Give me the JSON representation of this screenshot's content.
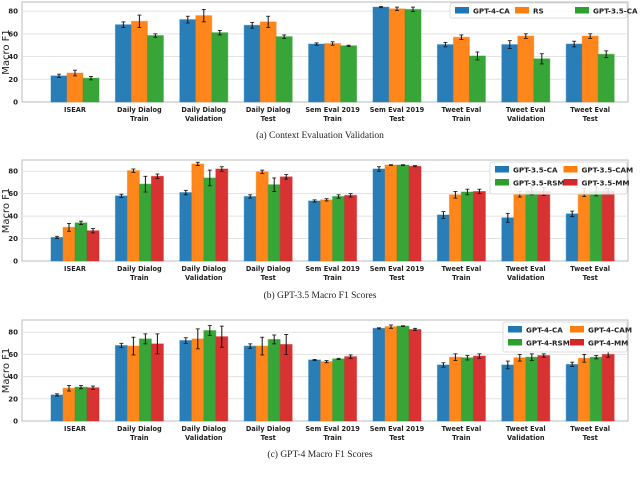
{
  "chart_data": [
    {
      "type": "bar",
      "title": "(a) Context Evaluation Validation",
      "ylabel": "Macro F1",
      "ylim": [
        0,
        88
      ],
      "yticks": [
        0,
        20,
        40,
        60,
        80
      ],
      "grid": true,
      "legend_placement": "top-right",
      "legend_columns": 3,
      "categories": [
        "ISEAR",
        "Daily Dialog\nTrain",
        "Daily Dialog\nValidation",
        "Daily Dialog\nTest",
        "Sem Eval 2019\nTrain",
        "Sem Eval 2019\nTest",
        "Tweet Eval\nTrain",
        "Tweet Eval\nValidation",
        "Tweet Eval\nTest"
      ],
      "series": [
        {
          "name": "GPT-4-CA",
          "color": "#1f77b4",
          "values": [
            23,
            68,
            72.5,
            67.5,
            51,
            83.5,
            50.5,
            50.5,
            51
          ],
          "std": [
            1.5,
            2.5,
            3,
            2.5,
            1,
            0.5,
            2,
            3.5,
            2.5
          ]
        },
        {
          "name": "RS",
          "color": "#ff7f0e",
          "values": [
            25.5,
            71,
            76,
            70.5,
            51.5,
            82,
            57,
            58,
            58
          ],
          "std": [
            2.5,
            5.5,
            5.5,
            5,
            1.5,
            1.5,
            2,
            2,
            2
          ]
        },
        {
          "name": "GPT-3.5-CA",
          "color": "#2ca02c",
          "values": [
            21,
            58.5,
            61,
            57.5,
            49.5,
            81.5,
            40.5,
            38,
            42
          ],
          "std": [
            1.5,
            1.5,
            2,
            1.5,
            0.5,
            2,
            3.5,
            4.5,
            3
          ]
        }
      ]
    },
    {
      "type": "bar",
      "title": "(b) GPT-3.5 Macro F1 Scores",
      "ylabel": "Macro F1",
      "ylim": [
        0,
        90
      ],
      "yticks": [
        0,
        20,
        40,
        60,
        80
      ],
      "grid": true,
      "legend_placement": "top-right",
      "legend_columns": 2,
      "categories": [
        "ISEAR",
        "Daily Dialog\nTrain",
        "Daily Dialog\nValidation",
        "Daily Dialog\nTest",
        "Sem Eval 2019\nTrain",
        "Sem Eval 2019\nTest",
        "Tweet Eval\nTrain",
        "Tweet Eval\nValidation",
        "Tweet Eval\nTest"
      ],
      "series": [
        {
          "name": "GPT-3.5-CA",
          "color": "#1f77b4",
          "values": [
            21,
            58,
            61,
            57.5,
            53.5,
            82,
            41,
            38.5,
            42
          ],
          "std": [
            1,
            1.5,
            2,
            1.5,
            1,
            2,
            3,
            4,
            2.5
          ]
        },
        {
          "name": "GPT-3.5-CAM",
          "color": "#ff7f0e",
          "values": [
            30,
            80.5,
            86.5,
            79.5,
            54.5,
            85.5,
            59,
            59.5,
            61
          ],
          "std": [
            3.5,
            1.5,
            1.5,
            1.5,
            1,
            0.3,
            3,
            2.5,
            3.5
          ]
        },
        {
          "name": "GPT-3.5-RSM",
          "color": "#2ca02c",
          "values": [
            34,
            68.5,
            74,
            68,
            57.5,
            85.5,
            61.5,
            62.5,
            62
          ],
          "std": [
            1.5,
            7,
            7,
            6,
            1.5,
            0.3,
            2.5,
            3.5,
            4
          ]
        },
        {
          "name": "GPT-3.5-MM",
          "color": "#d62728",
          "values": [
            27,
            75.5,
            82,
            75,
            58.5,
            84.5,
            62,
            62,
            62
          ],
          "std": [
            2,
            2,
            2,
            2,
            1.5,
            0.5,
            2,
            3.5,
            2.5
          ]
        }
      ]
    },
    {
      "type": "bar",
      "title": "(c) GPT-4 Macro F1 Scores",
      "ylabel": "Macro F1",
      "ylim": [
        0,
        91
      ],
      "yticks": [
        0,
        20,
        40,
        60,
        80
      ],
      "grid": true,
      "legend_placement": "top-right",
      "legend_columns": 2,
      "categories": [
        "ISEAR",
        "Daily Dialog\nTrain",
        "Daily Dialog\nValidation",
        "Daily Dialog\nTest",
        "Sem Eval 2019\nTrain",
        "Sem Eval 2019\nTest",
        "Tweet Eval\nTrain",
        "Tweet Eval\nValidation",
        "Tweet Eval\nTest"
      ],
      "series": [
        {
          "name": "GPT-4-CA",
          "color": "#1f77b4",
          "values": [
            23.5,
            68,
            72.5,
            67.5,
            55,
            83.5,
            50.5,
            50.5,
            51
          ],
          "std": [
            1,
            2,
            2.5,
            2,
            0.5,
            0.5,
            2,
            3.5,
            2
          ]
        },
        {
          "name": "GPT-4-CAM",
          "color": "#ff7f0e",
          "values": [
            29.5,
            67.5,
            74,
            67.5,
            53.5,
            85,
            57.5,
            57,
            56.5
          ],
          "std": [
            2.5,
            8,
            9,
            8,
            1,
            1.5,
            3,
            3,
            3.5
          ]
        },
        {
          "name": "GPT-4-RSM",
          "color": "#2ca02c",
          "values": [
            30.5,
            74,
            81.5,
            73.5,
            56,
            85.5,
            57,
            57.5,
            57.5
          ],
          "std": [
            1.5,
            4.5,
            4.5,
            4,
            0.5,
            0.3,
            2,
            3,
            1.5
          ]
        },
        {
          "name": "GPT-4-MM",
          "color": "#d62728",
          "values": [
            30,
            69.5,
            76,
            69,
            58,
            82.5,
            58.5,
            59,
            60
          ],
          "std": [
            1.5,
            9,
            9.5,
            9,
            1.5,
            1,
            2,
            1.5,
            2.5
          ]
        }
      ]
    }
  ]
}
